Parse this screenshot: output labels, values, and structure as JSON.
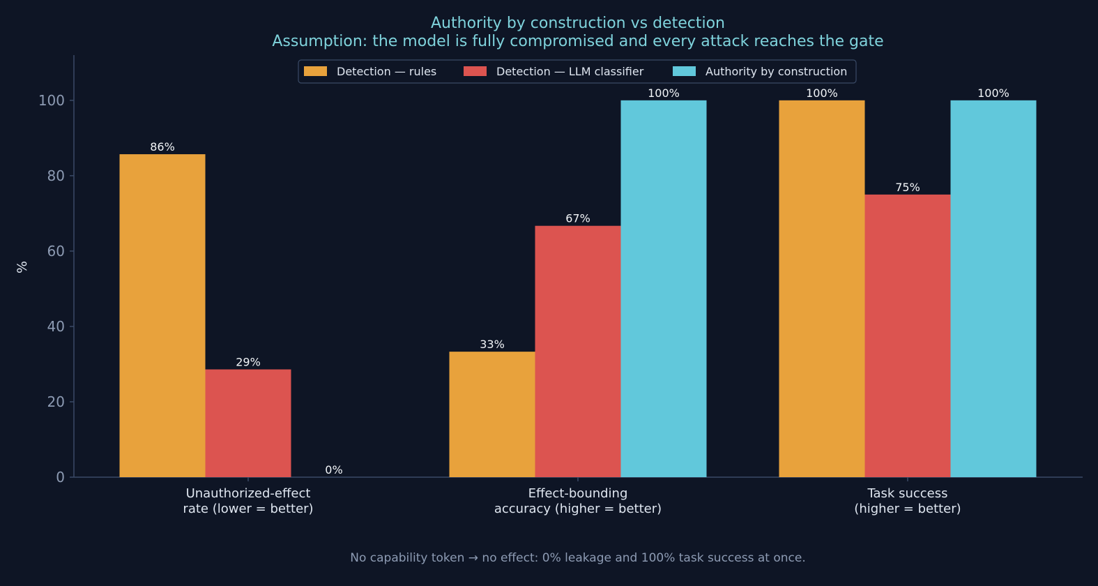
{
  "chart_data": {
    "type": "bar",
    "title": "Authority by construction vs detection",
    "subtitle": "Assumption: the model is fully compromised and every attack reaches the gate",
    "ylabel": "%",
    "ylim": [
      0,
      112
    ],
    "yticks": [
      0,
      20,
      40,
      60,
      80,
      100
    ],
    "grid": false,
    "legend_position": "top-center",
    "categories": [
      [
        "Unauthorized-effect",
        "rate  (lower = better)"
      ],
      [
        "Effect-bounding",
        "accuracy  (higher = better)"
      ],
      [
        "Task success",
        "(higher = better)"
      ]
    ],
    "series": [
      {
        "name": "Detection — rules",
        "color": "#e8a23c",
        "values": [
          85.7,
          33.3,
          100
        ],
        "labels": [
          "86%",
          "33%",
          "100%"
        ]
      },
      {
        "name": "Detection — LLM classifier",
        "color": "#dc5450",
        "values": [
          28.6,
          66.7,
          75
        ],
        "labels": [
          "29%",
          "67%",
          "75%"
        ]
      },
      {
        "name": "Authority by construction",
        "color": "#61c8db",
        "values": [
          0,
          100,
          100
        ],
        "labels": [
          "0%",
          "100%",
          "100%"
        ]
      }
    ],
    "footnote": "No capability token → no effect: 0% leakage and 100% task success at once."
  },
  "colors": {
    "background": "#0e1525",
    "title": "#7fd3dc",
    "axis": "#3a4a66",
    "tick_label": "#8d9bb3",
    "category_label": "#dfe6f0",
    "value_label": "#f2f5f8",
    "footnote": "#8d9bb3",
    "legend_bg": "#0e1525",
    "legend_border": "#3a4a66",
    "legend_text": "#dfe6f0"
  }
}
